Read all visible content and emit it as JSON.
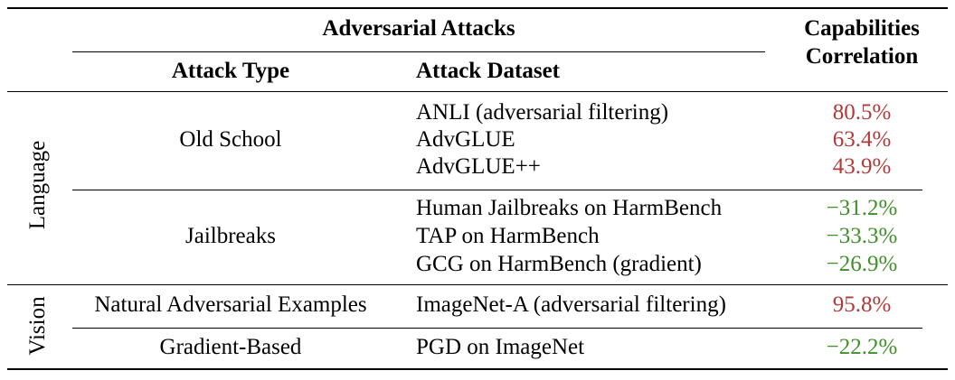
{
  "header": {
    "group_title": "Adversarial Attacks",
    "col_attack_type": "Attack Type",
    "col_attack_dataset": "Attack Dataset",
    "col_corr_line1": "Capabilities",
    "col_corr_line2": "Correlation"
  },
  "sections": [
    {
      "label": "Language",
      "groups": [
        {
          "type": "Old School",
          "rows": [
            {
              "dataset": "ANLI (adversarial filtering)",
              "corr": "80.5%",
              "sign": "pos"
            },
            {
              "dataset": "AdvGLUE",
              "corr": "63.4%",
              "sign": "pos"
            },
            {
              "dataset": "AdvGLUE++",
              "corr": "43.9%",
              "sign": "pos"
            }
          ]
        },
        {
          "type": "Jailbreaks",
          "rows": [
            {
              "dataset": "Human Jailbreaks on HarmBench",
              "corr": "−31.2%",
              "sign": "neg"
            },
            {
              "dataset": "TAP on HarmBench",
              "corr": "−33.3%",
              "sign": "neg"
            },
            {
              "dataset": "GCG on HarmBench (gradient)",
              "corr": "−26.9%",
              "sign": "neg"
            }
          ]
        }
      ]
    },
    {
      "label": "Vision",
      "groups": [
        {
          "type": "Natural Adversarial Examples",
          "rows": [
            {
              "dataset": "ImageNet-A (adversarial filtering)",
              "corr": "95.8%",
              "sign": "pos"
            }
          ]
        },
        {
          "type": "Gradient-Based",
          "rows": [
            {
              "dataset": "PGD on ImageNet",
              "corr": "−22.2%",
              "sign": "neg"
            }
          ]
        }
      ]
    }
  ],
  "colors": {
    "positive": "#b03a3a",
    "negative": "#3f8f2a"
  }
}
